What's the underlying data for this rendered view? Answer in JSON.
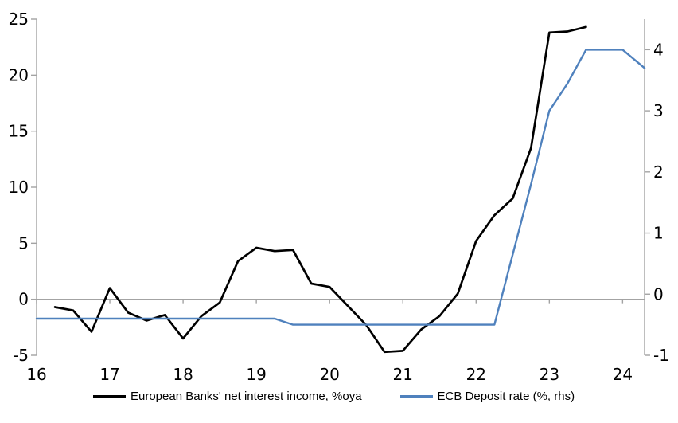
{
  "chart_data": {
    "type": "line",
    "title": "",
    "xlabel": "",
    "ylabel": "",
    "grid": "zero-gridline-only",
    "legend_position": "bottom",
    "x_axis": {
      "range": [
        16,
        24.3
      ],
      "ticks": [
        16,
        17,
        18,
        19,
        20,
        21,
        22,
        23,
        24
      ]
    },
    "left_y_axis": {
      "range": [
        -5,
        25
      ],
      "ticks": [
        -5,
        0,
        5,
        10,
        15,
        20,
        25
      ]
    },
    "right_y_axis": {
      "range": [
        -1,
        4.5
      ],
      "ticks": [
        -1,
        0,
        1,
        2,
        3,
        4
      ]
    },
    "series": [
      {
        "name": "European Banks' net interest income, %oya",
        "axis": "left",
        "color": "#000000",
        "x": [
          16.25,
          16.5,
          16.75,
          17,
          17.25,
          17.5,
          17.75,
          18,
          18.25,
          18.5,
          18.75,
          19,
          19.25,
          19.5,
          19.75,
          20,
          20.25,
          20.5,
          20.75,
          21,
          21.25,
          21.5,
          21.75,
          22,
          22.25,
          22.5,
          22.75,
          23,
          23.25,
          23.5
        ],
        "values": [
          -0.7,
          -1.0,
          -2.9,
          1.0,
          -1.2,
          -1.9,
          -1.4,
          -3.5,
          -1.5,
          -0.3,
          3.4,
          4.6,
          4.3,
          4.4,
          1.4,
          1.1,
          -0.6,
          -2.3,
          -4.7,
          -4.6,
          -2.7,
          -1.5,
          0.5,
          5.2,
          7.5,
          9.0,
          13.5,
          23.8,
          23.9,
          24.3
        ]
      },
      {
        "name": "ECB Deposit rate (%, rhs)",
        "axis": "right",
        "color": "#4f81bd",
        "x": [
          16,
          16.25,
          16.5,
          16.75,
          17,
          17.25,
          17.5,
          17.75,
          18,
          18.25,
          18.5,
          18.75,
          19,
          19.25,
          19.5,
          19.75,
          20,
          20.25,
          20.5,
          20.75,
          21,
          21.25,
          21.5,
          21.75,
          22,
          22.25,
          22.5,
          22.75,
          23,
          23.25,
          23.5,
          23.75,
          24,
          24.3
        ],
        "values": [
          -0.4,
          -0.4,
          -0.4,
          -0.4,
          -0.4,
          -0.4,
          -0.4,
          -0.4,
          -0.4,
          -0.4,
          -0.4,
          -0.4,
          -0.4,
          -0.4,
          -0.5,
          -0.5,
          -0.5,
          -0.5,
          -0.5,
          -0.5,
          -0.5,
          -0.5,
          -0.5,
          -0.5,
          -0.5,
          -0.5,
          0.65,
          1.8,
          3.0,
          3.45,
          4.0,
          4.0,
          4.0,
          3.7
        ]
      }
    ]
  },
  "colors": {
    "axis": "#a3a3a3",
    "text": "#000000",
    "background": "#ffffff",
    "series1": "#000000",
    "series2": "#4f81bd"
  }
}
